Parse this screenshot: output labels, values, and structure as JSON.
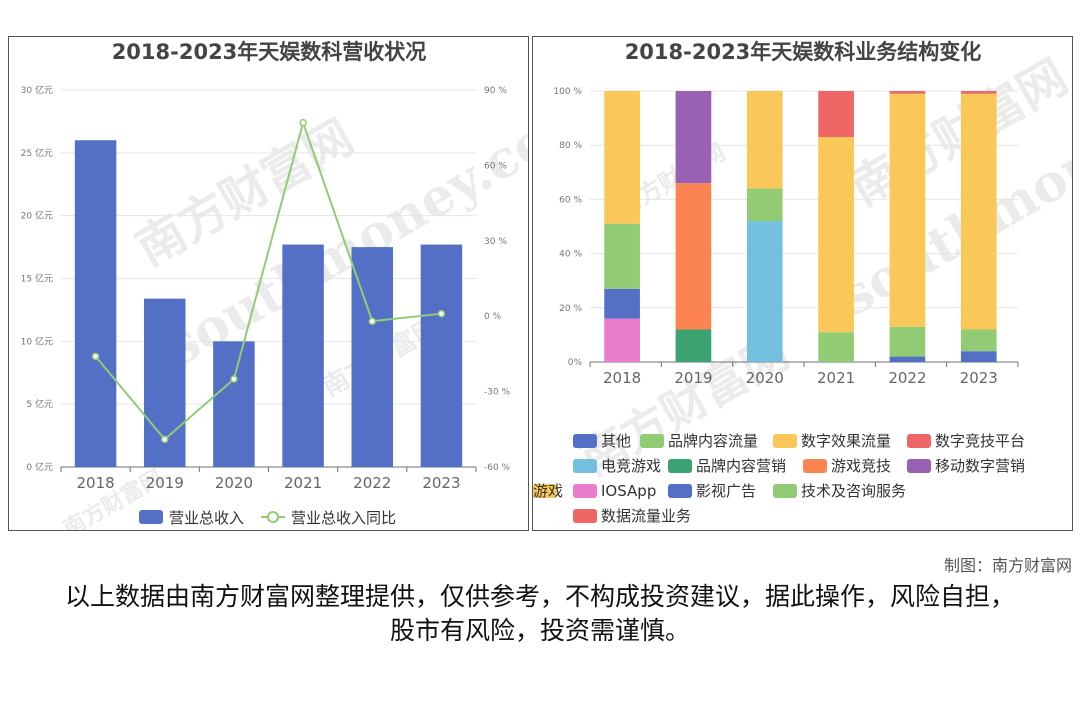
{
  "charts": {
    "left": {
      "title": "2018-2023年天娱数科营收状况",
      "left_ticks": [
        "0 亿元",
        "5 亿元",
        "10 亿元",
        "15 亿元",
        "20 亿元",
        "25 亿元",
        "30 亿元"
      ],
      "right_ticks": [
        "-60 %",
        "-30 %",
        "0 %",
        "30 %",
        "60 %",
        "90 %"
      ],
      "legend": [
        "营业总收入",
        "营业总收入同比"
      ]
    },
    "right": {
      "title": "2018-2023年天娱数科业务结构变化",
      "y_ticks": [
        "0%",
        "20 %",
        "40 %",
        "60 %",
        "80 %",
        "100 %"
      ]
    }
  },
  "chart_data": [
    {
      "type": "bar",
      "title": "2018-2023年天娱数科营收状况",
      "categories": [
        "2018",
        "2019",
        "2020",
        "2021",
        "2022",
        "2023"
      ],
      "series": [
        {
          "name": "营业总收入",
          "type": "bar",
          "axis": "left",
          "color": "#5470c6",
          "values": [
            26.0,
            13.4,
            10.0,
            17.7,
            17.5,
            17.7
          ]
        },
        {
          "name": "营业总收入同比",
          "type": "line",
          "axis": "right",
          "color": "#91cc75",
          "values": [
            -16,
            -49,
            -25,
            77,
            -2,
            1
          ]
        }
      ],
      "ylim_left": [
        0,
        30
      ],
      "ylim_right": [
        -60,
        90
      ],
      "legend_position": "bottom"
    },
    {
      "type": "bar",
      "stacked": true,
      "title": "2018-2023年天娱数科业务结构变化",
      "categories": [
        "2018",
        "2019",
        "2020",
        "2021",
        "2022",
        "2023"
      ],
      "ylim": [
        0,
        100
      ],
      "series": [
        {
          "name": "其他",
          "color": "#5470c6",
          "values": [
            0,
            0,
            0,
            0,
            0,
            0
          ]
        },
        {
          "name": "品牌内容流量",
          "color": "#91cc75",
          "values": [
            0,
            0,
            0,
            0,
            0,
            0
          ]
        },
        {
          "name": "数字效果流量",
          "color": "#fac858",
          "values": [
            0,
            0,
            0,
            0,
            0,
            0
          ]
        },
        {
          "name": "数字竞技平台",
          "color": "#ee6666",
          "values": [
            0,
            0,
            0,
            0,
            0,
            0
          ]
        },
        {
          "name": "电竞游戏",
          "color": "#73c0de",
          "values": [
            0,
            0,
            52,
            0,
            0,
            0
          ]
        },
        {
          "name": "品牌内容营销",
          "color": "#3ba272",
          "values": [
            0,
            12,
            0,
            0,
            0,
            0
          ]
        },
        {
          "name": "游戏竞技",
          "color": "#fc8452",
          "values": [
            0,
            54,
            0,
            0,
            0,
            0
          ]
        },
        {
          "name": "移动数字营销",
          "color": "#9a60b4",
          "values": [
            0,
            34,
            0,
            0,
            0,
            0
          ]
        },
        {
          "name": "IOSApp",
          "color": "#ea7ccc",
          "values": [
            16,
            0,
            0,
            0,
            0,
            0
          ]
        },
        {
          "name": "影视广告",
          "color": "#5470c6",
          "values": [
            11,
            0,
            0,
            0,
            2,
            4
          ]
        },
        {
          "name": "技术及咨询服务",
          "color": "#91cc75",
          "values": [
            24,
            0,
            12,
            11,
            11,
            8
          ]
        },
        {
          "name": "游戏",
          "color": "#fac858",
          "values": [
            49,
            0,
            36,
            72,
            86,
            87
          ]
        },
        {
          "name": "数据流量业务",
          "color": "#ee6666",
          "values": [
            0,
            0,
            0,
            17,
            1,
            1
          ]
        }
      ],
      "legend_position": "bottom"
    }
  ],
  "watermark": {
    "cn": "南方财富网",
    "en": "southmoney.com"
  },
  "footer": {
    "credit": "制图：南方财富网",
    "disclaimer": "以上数据由南方财富网整理提供，仅供参考，不构成投资建议，据此操作，风险自担，股市有风险，投资需谨慎。"
  }
}
